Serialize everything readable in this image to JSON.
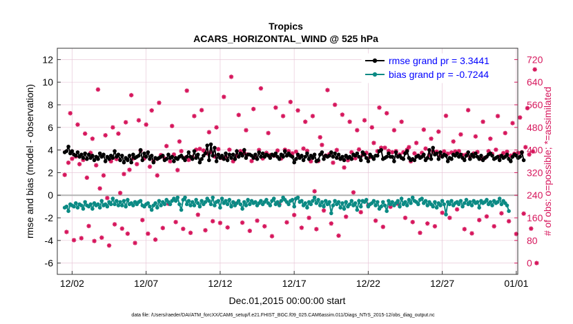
{
  "chart_data": {
    "type": "line",
    "title": "Tropics",
    "subtitle": "ACARS_HORIZONTAL_WIND @ 525 hPa",
    "xlabel": "Dec.01,2015 00:00:00 start",
    "ylabel_left": "rmse and bias (model - observation)",
    "ylabel_right": "# of obs: o=possible; *=assimilated",
    "footer": "data file: /Users/raeder/DAI/ATM_forcXX/CAM6_setup/f.e21.FHIST_BGC.f09_025.CAM6assim.011/Diags_NTrS_2015-12/obs_diag_output.nc",
    "xlim": [
      0.5,
      31.6
    ],
    "ylim_left": [
      -7,
      13
    ],
    "ylim_right": [
      -40,
      760
    ],
    "x_ticks": [
      {
        "x": 1.5,
        "label": "12/02"
      },
      {
        "x": 6.5,
        "label": "12/07"
      },
      {
        "x": 11.5,
        "label": "12/12"
      },
      {
        "x": 16.5,
        "label": "12/17"
      },
      {
        "x": 21.5,
        "label": "12/22"
      },
      {
        "x": 26.5,
        "label": "12/27"
      },
      {
        "x": 31.5,
        "label": "01/01"
      }
    ],
    "y_ticks_left": [
      -6,
      -4,
      -2,
      0,
      2,
      4,
      6,
      8,
      10,
      12
    ],
    "y_ticks_right": [
      0,
      80,
      160,
      240,
      320,
      400,
      480,
      560,
      640,
      720
    ],
    "legend": {
      "placement": "top-right",
      "entries": [
        {
          "label": "rmse grand pr = 3.3441",
          "color": "#000000",
          "text_color": "#0000ff"
        },
        {
          "label": "bias grand pr = -0.7244",
          "color": "#0b8a84",
          "text_color": "#0000ff"
        }
      ]
    },
    "colors": {
      "rmse": "#000000",
      "bias": "#0b8a84",
      "obs": "#d6165c",
      "zero_line": "#b3b3b3",
      "grid": "#e8c8d8"
    },
    "series": [
      {
        "name": "rmse",
        "axis": "left",
        "values": [
          3.8,
          3.9,
          4.3,
          3.7,
          3.9,
          3.6,
          3.5,
          3.8,
          3.4,
          3.6,
          3.3,
          3.7,
          3.2,
          3.6,
          3.3,
          3.5,
          3.1,
          3.4,
          3.2,
          3.7,
          3.4,
          3.6,
          3.0,
          3.4,
          3.2,
          3.5,
          3.3,
          3.9,
          3.4,
          3.6,
          3.1,
          3.5,
          2.9,
          3.3,
          3.1,
          3.5,
          2.9,
          3.6,
          3.3,
          3.4,
          3.5,
          4.0,
          3.1,
          3.7,
          3.4,
          3.8,
          3.2,
          3.5,
          2.9,
          3.3,
          3.2,
          3.3,
          3.4,
          3.5,
          3.1,
          3.2,
          3.6,
          3.3,
          3.4,
          3.0,
          3.3,
          3.2,
          3.4,
          3.5,
          3.3,
          3.1,
          3.4,
          3.8,
          3.4,
          3.2,
          3.9,
          3.3,
          3.6,
          2.9,
          3.2,
          3.5,
          3.7,
          4.4,
          3.1,
          4.5,
          3.5,
          4.2,
          3.0,
          3.6,
          3.3,
          3.5,
          3.2,
          3.7,
          3.1,
          3.6,
          3.3,
          3.6,
          3.2,
          3.9,
          3.4,
          3.7,
          3.5,
          4.0,
          3.3,
          3.6,
          3.6,
          3.5,
          3.3,
          3.6,
          3.2,
          3.8,
          3.4,
          3.7,
          3.4,
          3.6,
          3.5,
          3.3,
          3.6,
          3.5,
          3.7,
          3.4,
          3.2,
          3.6,
          3.4,
          3.9,
          3.5,
          3.7,
          3.5,
          3.4,
          2.9,
          3.2,
          3.6,
          3.3,
          3.5,
          3.1,
          3.4,
          3.7,
          3.2,
          3.5,
          3.3,
          3.6,
          3.0,
          3.1,
          3.6,
          3.8,
          3.2,
          3.5,
          3.4,
          3.5,
          3.8,
          3.4,
          3.7,
          3.3,
          3.6,
          3.2,
          3.4,
          3.1,
          3.5,
          3.3,
          3.4,
          3.2,
          3.6,
          3.5,
          3.7,
          3.4,
          3.1,
          3.8,
          3.6,
          3.3,
          3.0,
          3.6,
          3.4,
          3.2,
          3.5,
          3.5,
          3.9,
          4.0,
          3.2,
          3.3,
          3.4,
          3.7,
          3.4,
          3.4,
          3.0,
          3.8,
          3.4,
          3.5,
          3.3,
          3.2,
          3.7,
          3.9,
          3.3,
          3.1,
          3.2,
          3.1,
          3.4,
          3.5,
          3.3,
          3.4,
          3.6,
          3.1,
          3.3,
          4.0,
          3.2,
          4.2,
          3.6,
          3.7,
          3.2,
          3.8,
          3.4,
          3.6,
          3.5,
          3.0,
          3.3,
          3.2,
          3.6,
          3.5,
          3.7,
          3.4,
          3.6,
          3.3,
          3.1,
          3.5,
          3.8,
          3.2,
          3.6,
          3.4,
          3.7,
          3.4,
          3.2,
          3.5,
          3.1,
          3.3,
          3.4,
          3.6,
          3.7,
          3.5,
          3.2,
          3.3,
          3.4,
          3.1,
          3.5,
          3.3,
          3.4,
          3.6,
          3.2,
          3.0,
          3.4,
          3.6,
          3.5,
          3.3,
          3.4,
          3.8,
          3.1
        ]
      },
      {
        "name": "bias",
        "axis": "left",
        "values": [
          -1.1,
          -1.0,
          -1.4,
          -0.8,
          -0.9,
          -1.0,
          -0.7,
          -1.1,
          -0.8,
          -0.9,
          -1.2,
          -0.6,
          -0.9,
          -1.0,
          -0.8,
          -1.2,
          -0.7,
          -0.9,
          -0.8,
          -1.1,
          -0.5,
          -0.9,
          -0.8,
          -1.0,
          -0.6,
          -0.8,
          -0.3,
          -0.8,
          -0.5,
          -0.9,
          -0.6,
          -0.9,
          -0.5,
          -1.0,
          -0.4,
          -0.8,
          -0.7,
          -0.9,
          -0.6,
          -0.8,
          -0.6,
          -0.5,
          -0.9,
          -1.0,
          -0.8,
          -0.7,
          -1.0,
          -1.3,
          -0.9,
          -0.7,
          -1.1,
          -0.5,
          -0.9,
          -0.6,
          -0.8,
          -0.4,
          -0.6,
          -0.8,
          -0.5,
          -0.3,
          -0.5,
          -0.2,
          -0.8,
          -1.3,
          -0.4,
          -0.2,
          -0.8,
          -0.5,
          -0.9,
          -0.6,
          -0.9,
          -0.4,
          -0.7,
          -1.0,
          -0.5,
          -0.8,
          -0.6,
          -0.3,
          -0.5,
          -0.8,
          -0.2,
          -0.9,
          -0.6,
          -0.5,
          -1.1,
          -0.3,
          -0.7,
          -0.5,
          -0.8,
          -0.4,
          -1.0,
          -0.6,
          -0.9,
          -0.7,
          -0.5,
          -0.8,
          -1.2,
          -0.6,
          -0.9,
          -0.4,
          -0.8,
          -0.5,
          -0.7,
          -0.6,
          -0.9,
          -0.7,
          -0.5,
          -0.8,
          -0.6,
          -0.4,
          -0.7,
          -0.9,
          -0.5,
          -0.3,
          -0.8,
          -0.6,
          -0.9,
          -0.5,
          -0.2,
          -0.4,
          -0.6,
          -0.8,
          -0.5,
          -0.4,
          -1.0,
          -0.3,
          -0.2,
          -0.6,
          -0.5,
          -0.9,
          -0.7,
          -1.1,
          -0.6,
          -0.8,
          -0.5,
          -0.2,
          -0.7,
          -0.4,
          -0.9,
          -0.6,
          -1.0,
          -0.5,
          -0.8,
          -0.6,
          -1.6,
          -0.9,
          -0.5,
          -0.8,
          -0.6,
          -1.1,
          -0.7,
          -1.2,
          -0.6,
          -1.0,
          -0.8,
          -0.5,
          -0.9,
          -0.7,
          -1.3,
          -0.5,
          -1.0,
          -0.5,
          -0.6,
          -0.4,
          -1.0,
          -0.8,
          -0.7,
          -0.5,
          -0.9,
          -0.6,
          -1.2,
          -1.0,
          -0.6,
          -0.9,
          -1.4,
          -0.5,
          -0.8,
          -0.6,
          -0.9,
          -0.7,
          -0.5,
          -1.0,
          -0.3,
          -0.8,
          -0.6,
          -0.9,
          -0.4,
          -0.7,
          -0.2,
          -0.5,
          -0.6,
          -0.8,
          -0.4,
          -0.3,
          -0.7,
          -0.5,
          -0.9,
          -0.6,
          -0.8,
          -1.0,
          -0.6,
          -1.1,
          -0.7,
          -0.9,
          -0.5,
          -0.8,
          -1.7,
          -0.6,
          -0.8,
          -0.5,
          -0.9,
          -0.7,
          -0.6,
          -0.8,
          -0.5,
          -1.0,
          -0.7,
          -0.4,
          -0.8,
          -0.6,
          -0.9,
          -0.5,
          -0.7,
          -0.6,
          -1.1,
          -0.5,
          -0.7,
          -0.6,
          -0.4,
          -0.8,
          -0.6,
          -0.9,
          -0.5,
          -0.7,
          -0.6,
          -0.3,
          -0.8,
          -0.5,
          -0.7,
          -0.9,
          -1.4
        ]
      },
      {
        "name": "obs_assimilated",
        "axis": "right",
        "values": [
          312,
          110,
          355,
          530,
          369,
          81,
          377,
          490,
          350,
          88,
          365,
          458,
          302,
          131,
          390,
          440,
          78,
          346,
          614,
          264,
          90,
          310,
          452,
          230,
          62,
          360,
          480,
          137,
          368,
          458,
          248,
          122,
          315,
          498,
          104,
          330,
          594,
          370,
          71,
          350,
          505,
          398,
          152,
          370,
          490,
          104,
          341,
          540,
          360,
          83,
          310,
          567,
          382,
          124,
          370,
          414,
          210,
          360,
          485,
          384,
          145,
          329,
          430,
          396,
          121,
          372,
          610,
          365,
          107,
          375,
          520,
          401,
          171,
          404,
          541,
          398,
          116,
          388,
          463,
          393,
          148,
          377,
          480,
          403,
          142,
          372,
          588,
          375,
          126,
          401,
          659,
          360,
          210,
          380,
          524,
          396,
          143,
          390,
          470,
          384,
          114,
          361,
          545,
          374,
          150,
          400,
          618,
          370,
          130,
          390,
          460,
          382,
          95,
          380,
          550,
          398,
          208,
          370,
          520,
          401,
          144,
          396,
          570,
          388,
          170,
          394,
          540,
          375,
          125,
          405,
          500,
          397,
          160,
          360,
          520,
          254,
          120,
          361,
          445,
          418,
          186,
          380,
          612,
          385,
          140,
          355,
          560,
          400,
          97,
          369,
          525,
          338,
          164,
          364,
          500,
          392,
          250,
          371,
          470,
          402,
          180,
          383,
          505,
          390,
          205,
          375,
          480,
          425,
          150,
          396,
          550,
          408,
          128,
          408,
          530,
          397,
          199,
          392,
          470,
          396,
          210,
          384,
          500,
          392,
          160,
          401,
          410,
          360,
          145,
          388,
          425,
          380,
          107,
          390,
          472,
          405,
          140,
          382,
          440,
          395,
          130,
          394,
          465,
          380,
          178,
          395,
          521,
          387,
          160,
          391,
          430,
          395,
          190,
          396,
          455,
          382,
          120,
          384,
          541,
          375,
          105,
          388,
          448,
          393,
          152,
          370,
          500,
          372,
          165,
          396,
          440,
          386,
          130,
          401,
          520,
          378,
          176,
          389,
          460,
          394,
          148,
          380,
          495,
          387,
          103,
          390,
          515,
          392,
          175,
          410,
          548,
          384,
          122,
          395,
          685,
          0
        ]
      }
    ]
  }
}
